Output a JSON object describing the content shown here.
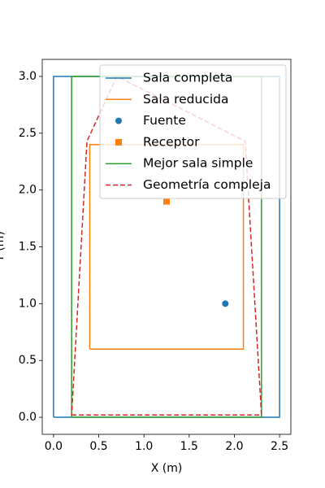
{
  "chart_data": {
    "type": "line",
    "xlabel": "X (m)",
    "ylabel": "Y (m)",
    "xlim": [
      -0.125,
      2.625
    ],
    "ylim": [
      -0.15,
      3.15
    ],
    "xticks": [
      {
        "value": 0,
        "label": "0.0"
      },
      {
        "value": 0.5,
        "label": "0.5"
      },
      {
        "value": 1,
        "label": "1.0"
      },
      {
        "value": 1.5,
        "label": "1.5"
      },
      {
        "value": 2,
        "label": "2.0"
      },
      {
        "value": 2.5,
        "label": "2.5"
      }
    ],
    "yticks": [
      {
        "value": 0,
        "label": "0.0"
      },
      {
        "value": 0.5,
        "label": "0.5"
      },
      {
        "value": 1,
        "label": "1.0"
      },
      {
        "value": 1.5,
        "label": "1.5"
      },
      {
        "value": 2,
        "label": "2.0"
      },
      {
        "value": 2.5,
        "label": "2.5"
      },
      {
        "value": 3,
        "label": "3.0"
      }
    ],
    "legend": "upper right",
    "series": [
      {
        "name": "Sala completa",
        "color": "#1f77b4",
        "linestyle": "solid",
        "x": [
          0,
          2.5,
          2.5,
          0,
          0
        ],
        "y": [
          0,
          0,
          3,
          3,
          0
        ]
      },
      {
        "name": "Sala reducida",
        "color": "#ff7f0e",
        "linestyle": "solid",
        "x": [
          0.4,
          2.1,
          2.1,
          0.4,
          0.4
        ],
        "y": [
          0.6,
          0.6,
          2.4,
          2.4,
          0.6
        ]
      },
      {
        "name": "Fuente",
        "color": "#1f77b4",
        "marker": "circle",
        "x": [
          1.9
        ],
        "y": [
          1.0
        ]
      },
      {
        "name": "Receptor",
        "color": "#ff7f0e",
        "marker": "square",
        "x": [
          1.25
        ],
        "y": [
          1.9
        ]
      },
      {
        "name": "Mejor sala simple",
        "color": "#2ca02c",
        "linestyle": "solid",
        "x": [
          0.2,
          2.3,
          2.3,
          0.2,
          0.2
        ],
        "y": [
          0,
          0,
          3,
          3,
          0
        ]
      },
      {
        "name": "Geometría compleja",
        "color": "#d62728",
        "linestyle": "dashed",
        "x": [
          0.2,
          2.3,
          2.12,
          1.45,
          0.7,
          0.37,
          0.2
        ],
        "y": [
          0.02,
          0.02,
          2.43,
          2.7,
          3.0,
          2.43,
          0.02
        ]
      }
    ]
  }
}
